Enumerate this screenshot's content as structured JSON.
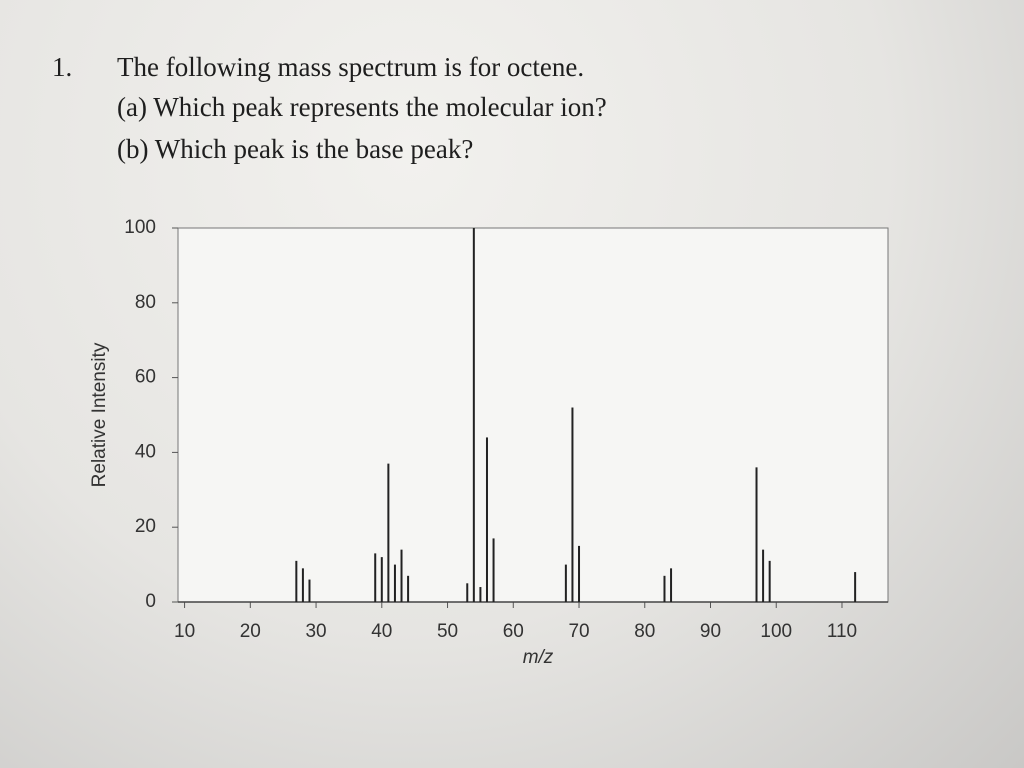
{
  "question": {
    "number": "1.",
    "lines": [
      "The following mass spectrum is for octene.",
      "(a) Which peak represents the molecular ion?",
      "(b) Which peak is the base peak?"
    ]
  },
  "chart_data": {
    "type": "bar",
    "xlabel": "m/z",
    "ylabel": "Relative Intensity",
    "color": "#222222",
    "x": [
      27,
      28,
      29,
      39,
      40,
      41,
      42,
      43,
      44,
      53,
      54,
      55,
      56,
      57,
      68,
      69,
      70,
      83,
      84,
      97,
      98,
      99,
      112
    ],
    "values": [
      11,
      9,
      6,
      13,
      12,
      37,
      10,
      14,
      7,
      5,
      100,
      4,
      44,
      17,
      10,
      52,
      15,
      7,
      9,
      36,
      14,
      11,
      8
    ],
    "xlim": [
      9,
      117
    ],
    "xticks": [
      10,
      20,
      30,
      40,
      50,
      60,
      70,
      80,
      90,
      100,
      110
    ],
    "ylim": [
      0,
      100
    ],
    "yticks": [
      0,
      20,
      40,
      60,
      80,
      100
    ]
  }
}
